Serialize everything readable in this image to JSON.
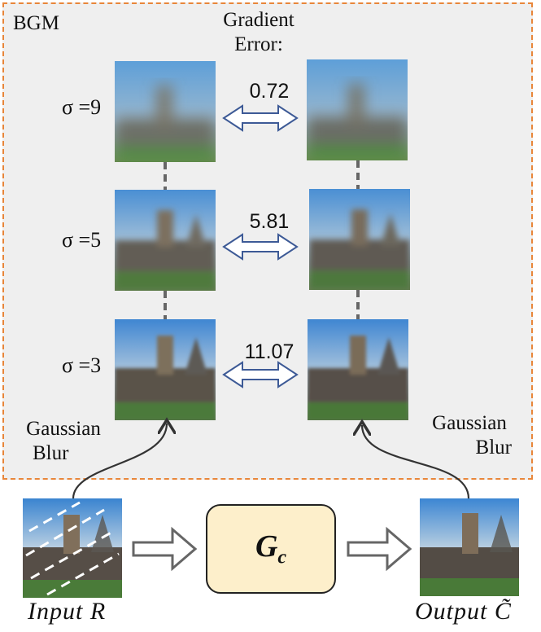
{
  "bgm_label": "BGM",
  "gradient_error_title_line1": "Gradient",
  "gradient_error_title_line2": "Error:",
  "rows": [
    {
      "sigma_label": "σ =9",
      "error": "0.72"
    },
    {
      "sigma_label": "σ =5",
      "error": "5.81"
    },
    {
      "sigma_label": "σ =3",
      "error": "11.07"
    }
  ],
  "left_blur_line1": "Gaussian",
  "left_blur_line2": "Blur",
  "right_blur_line1": "Gaussian",
  "right_blur_line2": "Blur",
  "generator_label": "G",
  "generator_subscript": "c",
  "input_label": "Input R",
  "output_label": "Output C̃",
  "colors": {
    "box_border": "#e8863a",
    "box_fill": "#efefef",
    "generator_fill": "#fdefcb",
    "double_arrow": "#3d5a96"
  }
}
